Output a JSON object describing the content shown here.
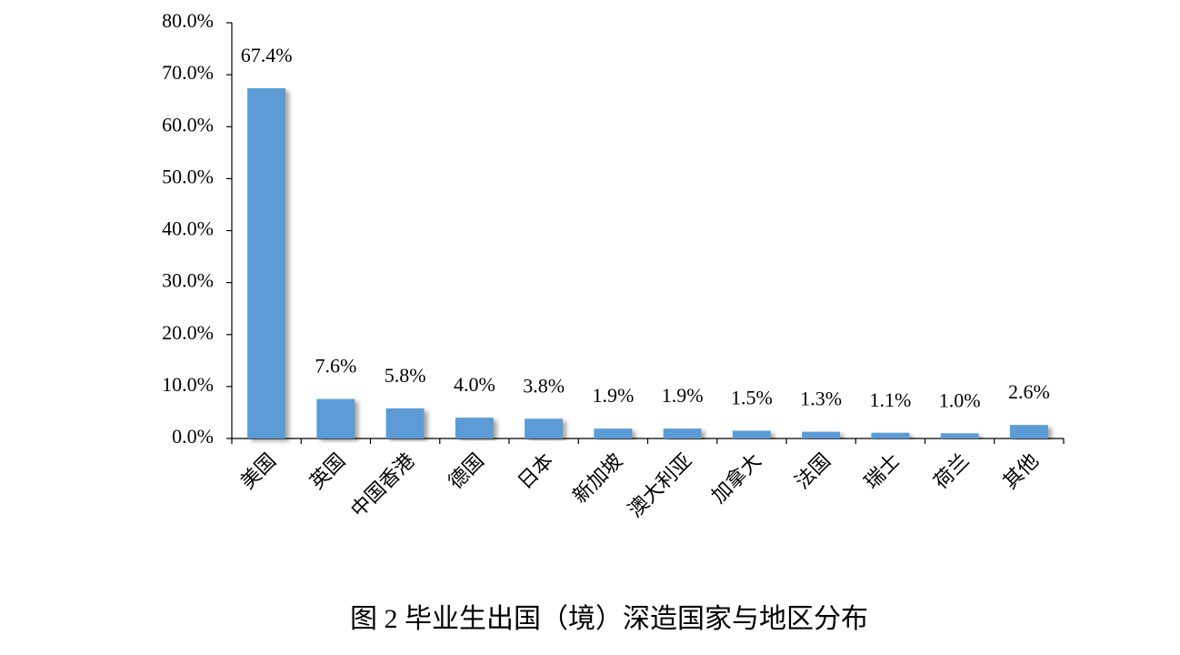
{
  "chart_data": {
    "type": "bar",
    "title": "图 2 毕业生出国（境）深造国家与地区分布",
    "categories": [
      "美国",
      "英国",
      "中国香港",
      "德国",
      "日本",
      "新加坡",
      "澳大利亚",
      "加拿大",
      "法国",
      "瑞士",
      "荷兰",
      "其他"
    ],
    "values": [
      67.4,
      7.6,
      5.8,
      4.0,
      3.8,
      1.9,
      1.9,
      1.5,
      1.3,
      1.1,
      1.0,
      2.6
    ],
    "value_labels": [
      "67.4%",
      "7.6%",
      "5.8%",
      "4.0%",
      "3.8%",
      "1.9%",
      "1.9%",
      "1.5%",
      "1.3%",
      "1.1%",
      "1.0%",
      "2.6%"
    ],
    "color": "#5b9bd5",
    "ylim": [
      0,
      80
    ],
    "yticks": [
      {
        "value": 0,
        "label": "0.0%"
      },
      {
        "value": 10,
        "label": "10.0%"
      },
      {
        "value": 20,
        "label": "20.0%"
      },
      {
        "value": 30,
        "label": "30.0%"
      },
      {
        "value": 40,
        "label": "40.0%"
      },
      {
        "value": 50,
        "label": "50.0%"
      },
      {
        "value": 60,
        "label": "60.0%"
      },
      {
        "value": 70,
        "label": "70.0%"
      },
      {
        "value": 80,
        "label": "80.0%"
      }
    ],
    "grid": false
  }
}
